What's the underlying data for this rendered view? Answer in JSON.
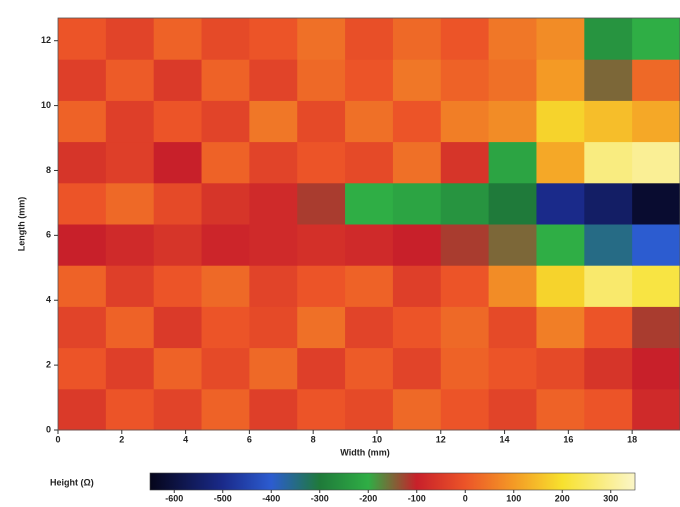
{
  "chart_data": {
    "type": "heatmap",
    "x_label": "Width (mm)",
    "y_label": "Length (mm)",
    "xlim": [
      0,
      19.5
    ],
    "ylim": [
      0,
      12.7
    ],
    "xticks": [
      0,
      2,
      4,
      6,
      8,
      10,
      12,
      14,
      16,
      18
    ],
    "yticks": [
      0,
      2,
      4,
      6,
      8,
      10,
      12
    ],
    "z": [
      [
        -50,
        0,
        -30,
        20,
        -40,
        0,
        -20,
        30,
        0,
        -30,
        20,
        0,
        -80
      ],
      [
        0,
        -40,
        20,
        -20,
        30,
        -40,
        10,
        -30,
        20,
        0,
        -20,
        -60,
        -100
      ],
      [
        -30,
        20,
        -50,
        0,
        -20,
        40,
        -30,
        0,
        30,
        -20,
        60,
        0,
        -120
      ],
      [
        20,
        -40,
        0,
        30,
        -30,
        0,
        20,
        -40,
        0,
        80,
        180,
        260,
        220
      ],
      [
        -100,
        -80,
        -60,
        -90,
        -80,
        -70,
        -80,
        -100,
        -120,
        -150,
        -200,
        -350,
        -400
      ],
      [
        0,
        30,
        -20,
        -60,
        -80,
        -120,
        -200,
        -220,
        -250,
        -300,
        -500,
        -550,
        -620
      ],
      [
        -60,
        -40,
        -100,
        20,
        -30,
        0,
        -20,
        40,
        -60,
        -220,
        120,
        280,
        300
      ],
      [
        20,
        -40,
        0,
        -30,
        50,
        -20,
        40,
        0,
        60,
        80,
        180,
        150,
        120
      ],
      [
        -40,
        10,
        -50,
        20,
        -30,
        30,
        0,
        50,
        20,
        40,
        100,
        -150,
        30
      ],
      [
        0,
        -30,
        20,
        -20,
        0,
        40,
        -10,
        30,
        0,
        50,
        80,
        -250,
        -200
      ]
    ],
    "colorbar_label": "Height (Ω)",
    "clim": [
      -650,
      350
    ],
    "colorbar_ticks": [
      -600,
      -500,
      -400,
      -300,
      -200,
      -100,
      0,
      100,
      200,
      300
    ],
    "colorscale": [
      {
        "value": -650,
        "color": "#05051a"
      },
      {
        "value": -500,
        "color": "#1a2a8a"
      },
      {
        "value": -400,
        "color": "#2c5cd0"
      },
      {
        "value": -300,
        "color": "#1f7a3a"
      },
      {
        "value": -200,
        "color": "#2fae45"
      },
      {
        "value": -100,
        "color": "#c8202a"
      },
      {
        "value": 0,
        "color": "#ec5428"
      },
      {
        "value": 100,
        "color": "#f49a25"
      },
      {
        "value": 200,
        "color": "#f7e12e"
      },
      {
        "value": 350,
        "color": "#fbf6c8"
      }
    ]
  }
}
